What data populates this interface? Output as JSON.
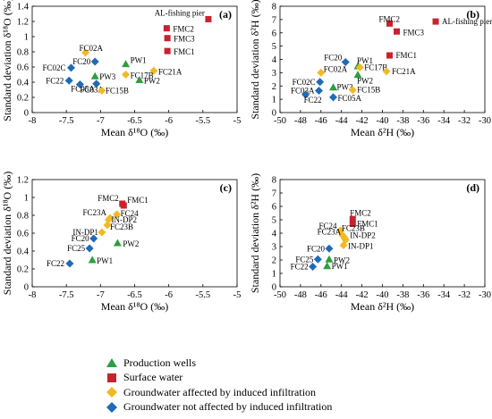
{
  "chart_data": [
    {
      "panel": "(a)",
      "type": "scatter",
      "xlabel": "Mean δ¹⁸O (‰)",
      "ylabel": "Standard deviation δ¹⁸O (‰)",
      "xlim": [
        -8,
        -5
      ],
      "ylim": [
        0,
        1.4
      ],
      "xticks": [
        -8,
        -7.5,
        -7,
        -6.5,
        -6,
        -5.5,
        -5
      ],
      "yticks": [
        0,
        0.2,
        0.4,
        0.6,
        0.8,
        1.0,
        1.2,
        1.4
      ],
      "grid": false,
      "points": [
        {
          "label": "AL-fishing pier",
          "group": "surface",
          "x": -5.42,
          "y": 1.23
        },
        {
          "label": "FMC2",
          "group": "surface",
          "x": -6.03,
          "y": 1.11
        },
        {
          "label": "FMC3",
          "group": "surface",
          "x": -6.02,
          "y": 0.98
        },
        {
          "label": "FMC1",
          "group": "surface",
          "x": -6.02,
          "y": 0.81
        },
        {
          "label": "FC02A",
          "group": "affected",
          "x": -7.22,
          "y": 0.79
        },
        {
          "label": "FC20",
          "group": "not_affected",
          "x": -7.08,
          "y": 0.67
        },
        {
          "label": "FC02C",
          "group": "not_affected",
          "x": -7.43,
          "y": 0.59
        },
        {
          "label": "PW1",
          "group": "production",
          "x": -6.63,
          "y": 0.64
        },
        {
          "label": "FC21A",
          "group": "affected",
          "x": -6.22,
          "y": 0.55
        },
        {
          "label": "FC17B",
          "group": "affected",
          "x": -6.63,
          "y": 0.5
        },
        {
          "label": "PW3",
          "group": "production",
          "x": -7.08,
          "y": 0.48
        },
        {
          "label": "PW2",
          "group": "production",
          "x": -6.43,
          "y": 0.43
        },
        {
          "label": "FC22",
          "group": "not_affected",
          "x": -7.46,
          "y": 0.42
        },
        {
          "label": "FC05A",
          "group": "not_affected",
          "x": -7.06,
          "y": 0.38
        },
        {
          "label": "FC03A",
          "group": "not_affected",
          "x": -7.3,
          "y": 0.37
        },
        {
          "label": "FC15B",
          "group": "affected",
          "x": -6.98,
          "y": 0.29
        }
      ]
    },
    {
      "panel": "(b)",
      "type": "scatter",
      "xlabel": "Mean δ²H (‰)",
      "ylabel": "Standard deviation δ²H (‰)",
      "xlim": [
        -50,
        -30
      ],
      "ylim": [
        0,
        8
      ],
      "xticks": [
        -50,
        -48,
        -46,
        -44,
        -42,
        -40,
        -38,
        -36,
        -34,
        -32,
        -30
      ],
      "yticks": [
        0,
        1,
        2,
        3,
        4,
        5,
        6,
        7,
        8
      ],
      "grid": false,
      "points": [
        {
          "label": "AL-fishing pier",
          "group": "surface",
          "x": -34.8,
          "y": 6.85
        },
        {
          "label": "FMC2",
          "group": "surface",
          "x": -39.3,
          "y": 6.7
        },
        {
          "label": "FMC3",
          "group": "surface",
          "x": -38.6,
          "y": 6.1
        },
        {
          "label": "FMC1",
          "group": "surface",
          "x": -39.3,
          "y": 4.3
        },
        {
          "label": "FC20",
          "group": "not_affected",
          "x": -43.6,
          "y": 3.8
        },
        {
          "label": "PW1",
          "group": "production",
          "x": -42.4,
          "y": 3.5
        },
        {
          "label": "FC17B",
          "group": "affected",
          "x": -42.2,
          "y": 3.4
        },
        {
          "label": "FC21A",
          "group": "affected",
          "x": -39.6,
          "y": 3.1
        },
        {
          "label": "FC02A",
          "group": "affected",
          "x": -46.0,
          "y": 3.0
        },
        {
          "label": "PW2",
          "group": "production",
          "x": -42.4,
          "y": 2.85
        },
        {
          "label": "FC02C",
          "group": "not_affected",
          "x": -46.1,
          "y": 2.3
        },
        {
          "label": "PW3",
          "group": "production",
          "x": -44.8,
          "y": 1.9
        },
        {
          "label": "FC15B",
          "group": "affected",
          "x": -42.9,
          "y": 1.7
        },
        {
          "label": "FC03A",
          "group": "not_affected",
          "x": -46.2,
          "y": 1.65
        },
        {
          "label": "FC22",
          "group": "not_affected",
          "x": -47.5,
          "y": 1.35
        },
        {
          "label": "FC05A",
          "group": "not_affected",
          "x": -44.8,
          "y": 1.15
        }
      ]
    },
    {
      "panel": "(c)",
      "type": "scatter",
      "xlabel": "Mean δ¹⁸O (‰)",
      "ylabel": "Standard deviation δ¹⁸O (‰)",
      "xlim": [
        -8,
        -5
      ],
      "ylim": [
        0,
        1.2
      ],
      "xticks": [
        -8,
        -7.5,
        -7,
        -6.5,
        -6,
        -5.5,
        -5
      ],
      "yticks": [
        0,
        0.2,
        0.4,
        0.6,
        0.8,
        1.0,
        1.2
      ],
      "grid": false,
      "points": [
        {
          "label": "FMC2",
          "group": "surface",
          "x": -6.68,
          "y": 0.93
        },
        {
          "label": "FMC1",
          "group": "surface",
          "x": -6.66,
          "y": 0.91
        },
        {
          "label": "FC24",
          "group": "affected",
          "x": -6.76,
          "y": 0.81
        },
        {
          "label": "FC23A",
          "group": "affected",
          "x": -6.86,
          "y": 0.77
        },
        {
          "label": "IN-DP2",
          "group": "affected",
          "x": -6.88,
          "y": 0.75
        },
        {
          "label": "FC23B",
          "group": "affected",
          "x": -6.9,
          "y": 0.69
        },
        {
          "label": "IN-DP1",
          "group": "affected",
          "x": -6.98,
          "y": 0.61
        },
        {
          "label": "FC20",
          "group": "not_affected",
          "x": -7.1,
          "y": 0.54
        },
        {
          "label": "PW2",
          "group": "production",
          "x": -6.75,
          "y": 0.49
        },
        {
          "label": "FC25",
          "group": "not_affected",
          "x": -7.16,
          "y": 0.43
        },
        {
          "label": "PW1",
          "group": "production",
          "x": -7.12,
          "y": 0.3
        },
        {
          "label": "FC22",
          "group": "not_affected",
          "x": -7.45,
          "y": 0.26
        }
      ]
    },
    {
      "panel": "(d)",
      "type": "scatter",
      "xlabel": "Mean δ²H (‰)",
      "ylabel": "Standard deviation δ²H (‰)",
      "xlim": [
        -50,
        -30
      ],
      "ylim": [
        0,
        8
      ],
      "xticks": [
        -50,
        -48,
        -46,
        -44,
        -42,
        -40,
        -38,
        -36,
        -34,
        -32,
        -30
      ],
      "yticks": [
        0,
        1,
        2,
        3,
        4,
        5,
        6,
        7,
        8
      ],
      "grid": false,
      "points": [
        {
          "label": "FMC2",
          "group": "surface",
          "x": -42.9,
          "y": 5.05
        },
        {
          "label": "FMC1",
          "group": "surface",
          "x": -42.9,
          "y": 4.7
        },
        {
          "label": "FC24",
          "group": "affected",
          "x": -44.1,
          "y": 4.2
        },
        {
          "label": "FC23B",
          "group": "affected",
          "x": -43.9,
          "y": 3.85
        },
        {
          "label": "FC23A",
          "group": "affected",
          "x": -43.7,
          "y": 3.65
        },
        {
          "label": "IN-DP2",
          "group": "affected",
          "x": -43.6,
          "y": 3.5
        },
        {
          "label": "IN-DP1",
          "group": "affected",
          "x": -43.8,
          "y": 3.1
        },
        {
          "label": "FC20",
          "group": "not_affected",
          "x": -45.2,
          "y": 2.85
        },
        {
          "label": "PW2",
          "group": "production",
          "x": -45.2,
          "y": 2.05
        },
        {
          "label": "FC25",
          "group": "not_affected",
          "x": -46.3,
          "y": 2.05
        },
        {
          "label": "PW1",
          "group": "production",
          "x": -45.4,
          "y": 1.55
        },
        {
          "label": "FC22",
          "group": "not_affected",
          "x": -46.8,
          "y": 1.5
        }
      ]
    }
  ],
  "legend": [
    {
      "group": "production",
      "label": "Production wells",
      "marker": "triangle",
      "color": "#2e9e3f"
    },
    {
      "group": "surface",
      "label": "Surface water",
      "marker": "square",
      "color": "#c8232c"
    },
    {
      "group": "affected",
      "label": "Groundwater affected by induced infiltration",
      "marker": "diamond",
      "color": "#f3b924"
    },
    {
      "group": "not_affected",
      "label": "Groundwater not affected by induced infiltration",
      "marker": "diamond",
      "color": "#1f6bb5"
    }
  ]
}
